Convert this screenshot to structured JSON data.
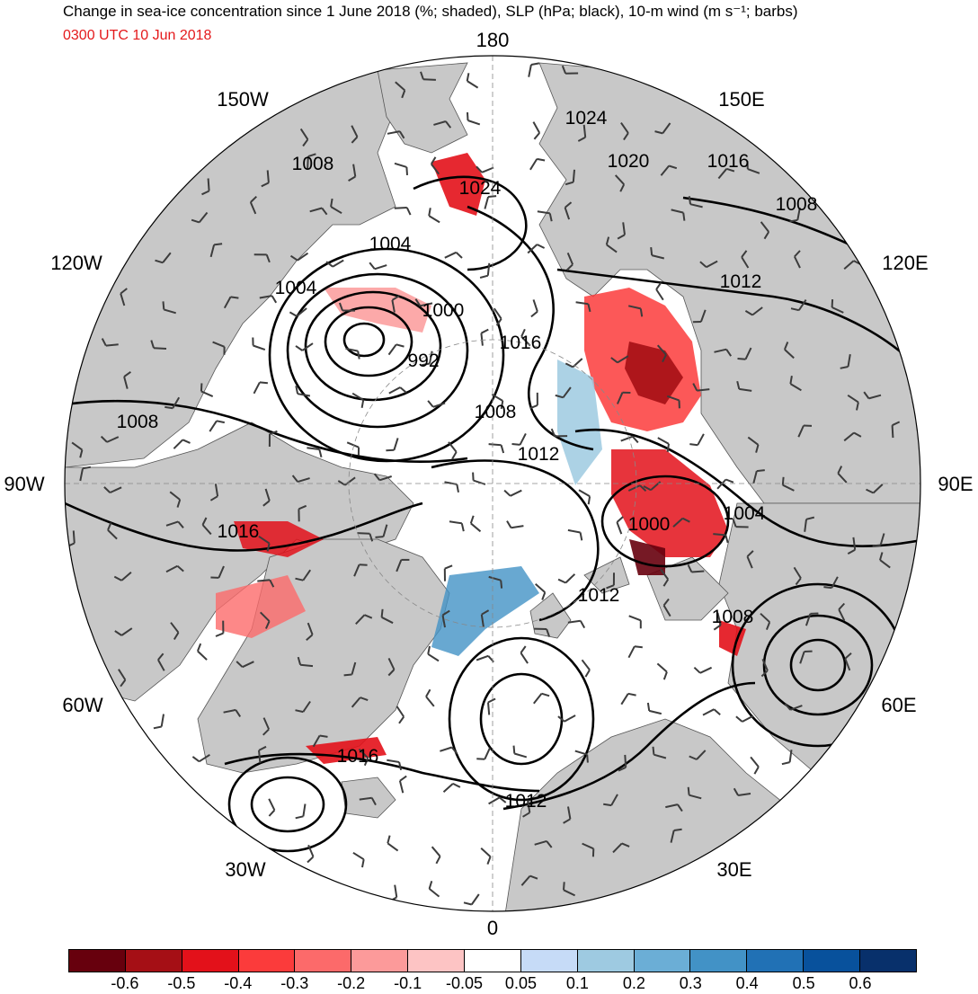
{
  "title": "Change in sea-ice concentration since 1 June 2018 (%; shaded), SLP (hPa; black), 10-m wind (m s⁻¹; barbs)",
  "valid_time": "0300 UTC 10 Jun 2018",
  "longitude_labels": {
    "n180": "180",
    "w150": "150W",
    "e150": "150E",
    "w120": "120W",
    "e120": "120E",
    "w90": "90W",
    "e90": "90E",
    "w60": "60W",
    "e60": "60E",
    "w30": "30W",
    "e30": "30E",
    "s0": "0"
  },
  "isobar_labels": {
    "l1024a": "1024",
    "l1020": "1020",
    "l1016a": "1016",
    "l1008a": "1008",
    "l1012a": "1012",
    "l1008b": "1008",
    "l1024b": "1024",
    "l1004a": "1004",
    "l1004b": "1004",
    "l1000a": "1000",
    "l992": "992",
    "l1016b": "1016",
    "l1008c": "1008",
    "l1008d": "1008",
    "l1012b": "1012",
    "l1000b": "1000",
    "l1004c": "1004",
    "l1016c": "1016",
    "l1012c": "1012",
    "l1008e": "1008",
    "l1016d": "1016",
    "l1012d": "1012"
  },
  "colors": {
    "land": "#c8c8c8",
    "ocean": "#ffffff",
    "isobar": "#000000",
    "barb": "#3c3c3c",
    "title_time": "#e41a1c"
  },
  "colorbar": {
    "colors": [
      "#67000d",
      "#a50f15",
      "#e3111a",
      "#fb3b3b",
      "#fc6a6a",
      "#fc9a9a",
      "#fdc4c4",
      "#ffffff",
      "#c6dbf7",
      "#9ecae1",
      "#6baed6",
      "#4292c6",
      "#2171b5",
      "#08519c",
      "#08306b"
    ],
    "labels": [
      "-0.6",
      "-0.5",
      "-0.4",
      "-0.3",
      "-0.2",
      "-0.1",
      "-0.05",
      "0.05",
      "0.1",
      "0.2",
      "0.3",
      "0.4",
      "0.5",
      "0.6"
    ]
  }
}
